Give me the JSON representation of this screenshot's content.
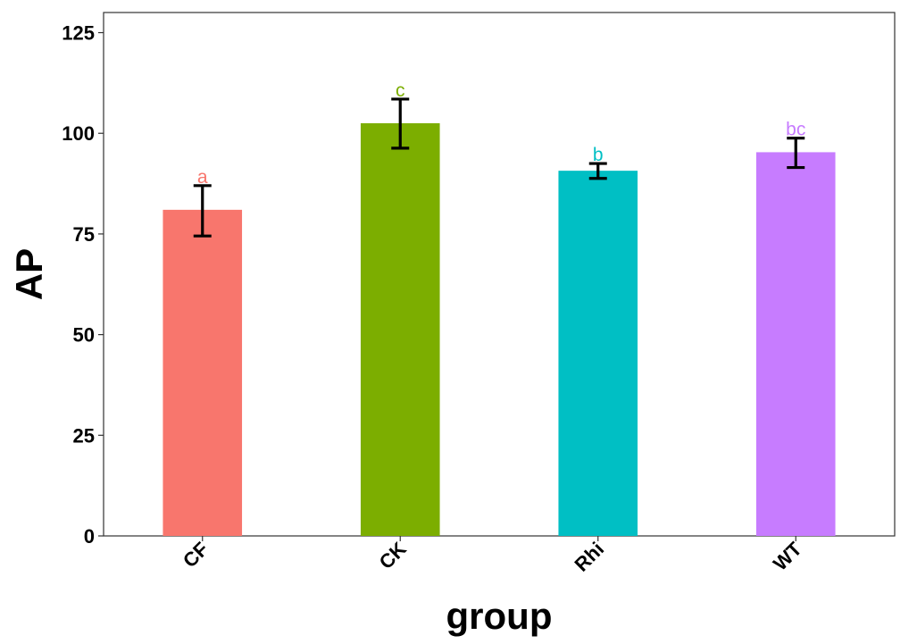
{
  "chart_data": {
    "type": "bar",
    "title": "",
    "xlabel": "group",
    "ylabel": "AP",
    "categories": [
      "CF",
      "CK",
      "Rhi",
      "WT"
    ],
    "values": [
      81,
      102.5,
      90.7,
      95.3
    ],
    "error_low": [
      74.5,
      96.3,
      88.8,
      91.5
    ],
    "error_high": [
      87.0,
      108.5,
      92.5,
      98.8
    ],
    "significance": [
      "a",
      "c",
      "b",
      "bc"
    ],
    "colors": [
      "#F8766D",
      "#7CAE00",
      "#00BFC4",
      "#C77CFF"
    ],
    "yticks": [
      "0",
      "25",
      "50",
      "75",
      "100",
      "125"
    ],
    "ylim": [
      0,
      130
    ],
    "grid": false,
    "legend": "none"
  }
}
